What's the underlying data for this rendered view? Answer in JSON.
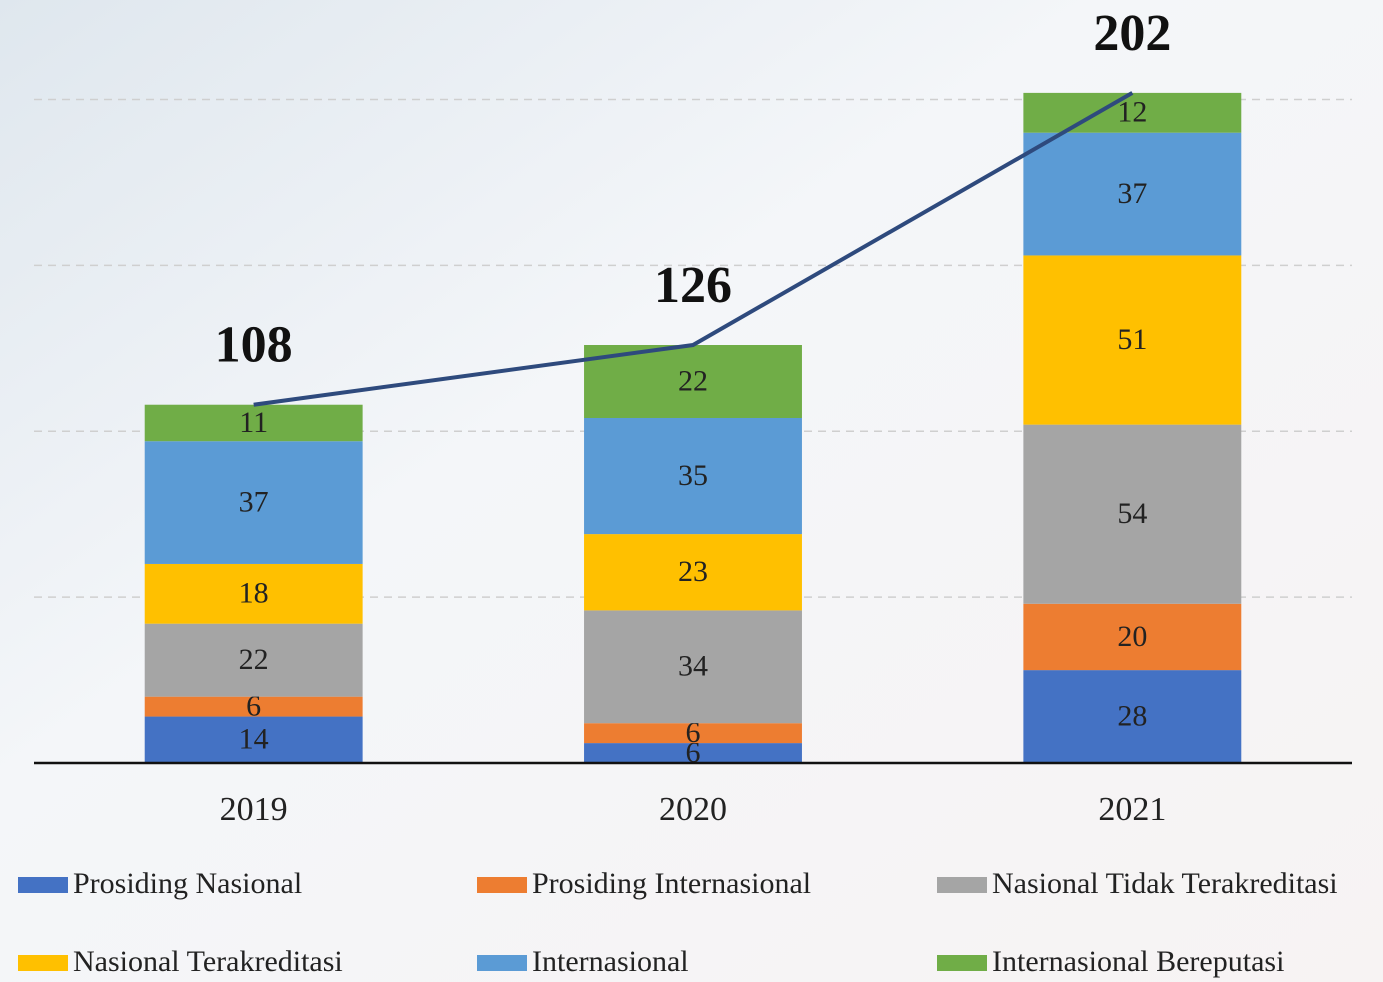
{
  "chart_data": {
    "type": "bar",
    "stacked": true,
    "categories": [
      "2019",
      "2020",
      "2021"
    ],
    "series": [
      {
        "name": "Prosiding Nasional",
        "color": "#4472c4",
        "values": [
          14,
          6,
          28
        ]
      },
      {
        "name": "Prosiding Internasional",
        "color": "#ed7d31",
        "values": [
          6,
          6,
          20
        ]
      },
      {
        "name": "Nasional Tidak Terakreditasi",
        "color": "#a5a5a5",
        "values": [
          22,
          34,
          54
        ]
      },
      {
        "name": "Nasional Terakreditasi",
        "color": "#ffc000",
        "values": [
          18,
          23,
          51
        ]
      },
      {
        "name": "Internasional",
        "color": "#5b9bd5",
        "values": [
          37,
          35,
          37
        ]
      },
      {
        "name": "Internasional Bereputasi",
        "color": "#70ad47",
        "values": [
          11,
          22,
          12
        ]
      }
    ],
    "totals": {
      "values": [
        108,
        126,
        202
      ],
      "color": "#2e4a7d"
    },
    "ylim": [
      0,
      230
    ],
    "yticks": [
      0,
      50,
      100,
      150,
      200
    ],
    "grid": true
  }
}
